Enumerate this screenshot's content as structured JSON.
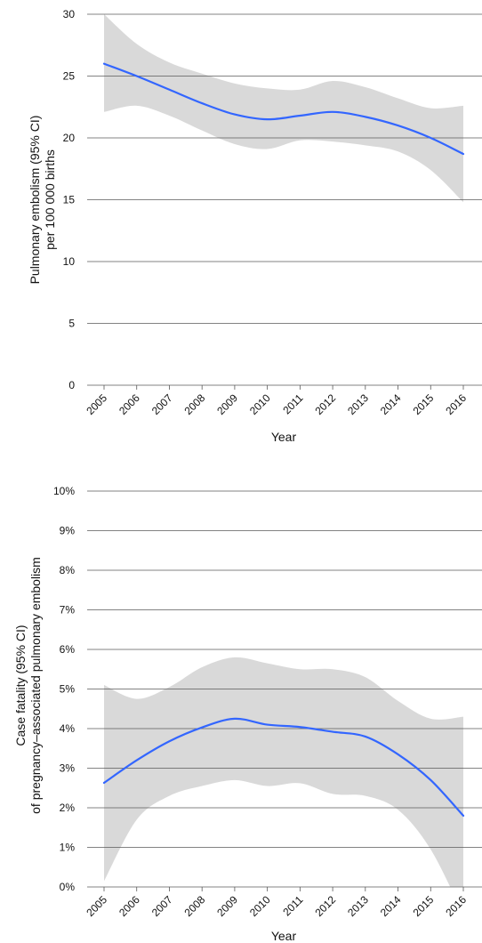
{
  "colors": {
    "line": "#3366ff",
    "band": "#d9d9d9",
    "grid": "#5a5a5a",
    "text": "#111111"
  },
  "chart_data": [
    {
      "type": "line",
      "x": [
        2005,
        2006,
        2007,
        2008,
        2009,
        2010,
        2011,
        2012,
        2013,
        2014,
        2015,
        2016
      ],
      "x_tick_labels": [
        "2005",
        "2006",
        "2007",
        "2008",
        "2009",
        "2010",
        "2011",
        "2012",
        "2013",
        "2014",
        "2015",
        "2016"
      ],
      "series": [
        {
          "values": [
            26.0,
            25.0,
            23.9,
            22.8,
            21.9,
            21.5,
            21.8,
            22.1,
            21.7,
            21.0,
            20.0,
            18.7
          ],
          "ci_lower": [
            22.1,
            22.6,
            21.8,
            20.6,
            19.5,
            19.1,
            19.8,
            19.7,
            19.4,
            18.9,
            17.4,
            14.8
          ],
          "ci_upper": [
            30.0,
            27.6,
            26.1,
            25.2,
            24.4,
            24.0,
            23.9,
            24.6,
            24.1,
            23.2,
            22.4,
            22.6
          ]
        }
      ],
      "xlabel": "Year",
      "ylabel_lines": [
        "Pulmonary embolism (95% CI)",
        "per 100 000 births"
      ],
      "ylim": [
        0,
        30
      ],
      "y_ticks": [
        0,
        5,
        10,
        15,
        20,
        25,
        30
      ],
      "y_tick_labels": [
        "0",
        "5",
        "10",
        "15",
        "20",
        "25",
        "30"
      ],
      "grid": "horizontal"
    },
    {
      "type": "line",
      "x": [
        2005,
        2006,
        2007,
        2008,
        2009,
        2010,
        2011,
        2012,
        2013,
        2014,
        2015,
        2016
      ],
      "x_tick_labels": [
        "2005",
        "2006",
        "2007",
        "2008",
        "2009",
        "2010",
        "2011",
        "2012",
        "2013",
        "2014",
        "2015",
        "2016"
      ],
      "series": [
        {
          "values": [
            2.63,
            3.2,
            3.68,
            4.03,
            4.25,
            4.1,
            4.04,
            3.92,
            3.8,
            3.35,
            2.7,
            1.8
          ],
          "ci_lower": [
            0.15,
            1.7,
            2.3,
            2.55,
            2.7,
            2.55,
            2.62,
            2.35,
            2.3,
            1.95,
            0.95,
            -0.7
          ],
          "ci_upper": [
            5.1,
            4.75,
            5.05,
            5.55,
            5.8,
            5.65,
            5.5,
            5.5,
            5.3,
            4.7,
            4.25,
            4.3
          ]
        }
      ],
      "xlabel": "Year",
      "ylabel_lines": [
        "Case fatality (95% CI)",
        "of pregnancy–associated pulmonary embolism"
      ],
      "ylim": [
        0,
        10
      ],
      "y_ticks": [
        0,
        1,
        2,
        3,
        4,
        5,
        6,
        7,
        8,
        9,
        10
      ],
      "y_tick_labels": [
        "0%",
        "1%",
        "2%",
        "3%",
        "4%",
        "5%",
        "6%",
        "7%",
        "8%",
        "9%",
        "10%"
      ],
      "grid": "horizontal"
    }
  ]
}
